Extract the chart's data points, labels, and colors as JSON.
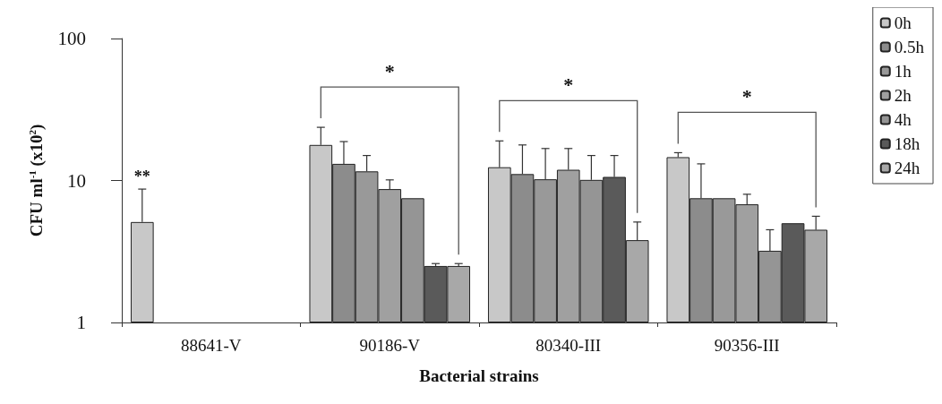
{
  "chart_data": {
    "type": "bar",
    "xlabel": "Bacterial strains",
    "ylabel": "CFU ml$^{-1}$ (x10$^{2}$)",
    "categories": [
      "88641-V",
      "90186-V",
      "80340-III",
      "90356-III"
    ],
    "series": [
      {
        "name": "0h",
        "color": "#c8c8c8",
        "values": [
          5.1,
          17.8,
          12.4,
          14.6
        ],
        "errors": [
          3.6,
          5.9,
          6.6,
          1.1
        ]
      },
      {
        "name": "0.5h",
        "color": "#8c8c8c",
        "values": [
          null,
          13.1,
          11.1,
          7.5
        ],
        "errors": [
          null,
          5.7,
          6.7,
          5.6
        ]
      },
      {
        "name": "1h",
        "color": "#999999",
        "values": [
          null,
          11.6,
          10.2,
          7.5
        ],
        "errors": [
          null,
          3.4,
          6.6,
          null
        ]
      },
      {
        "name": "2h",
        "color": "#a0a0a0",
        "values": [
          null,
          8.7,
          11.9,
          6.8
        ],
        "errors": [
          null,
          1.4,
          4.9,
          1.2
        ]
      },
      {
        "name": "4h",
        "color": "#959595",
        "values": [
          null,
          7.5,
          10.1,
          3.2
        ],
        "errors": [
          null,
          null,
          4.9,
          1.3
        ]
      },
      {
        "name": "18h",
        "color": "#5a5a5a",
        "values": [
          null,
          2.5,
          10.6,
          5.0
        ],
        "errors": [
          null,
          0.1,
          4.4,
          null
        ]
      },
      {
        "name": "24h",
        "color": "#a8a8a8",
        "values": [
          null,
          2.5,
          3.8,
          4.5
        ],
        "errors": [
          null,
          0.1,
          1.3,
          1.1
        ]
      }
    ],
    "log": true,
    "ylim": [
      1,
      100
    ],
    "yticks": [
      1,
      10,
      100
    ],
    "grid": false,
    "legend": "right",
    "annotations": [
      "**",
      "*",
      "*",
      "*"
    ]
  }
}
